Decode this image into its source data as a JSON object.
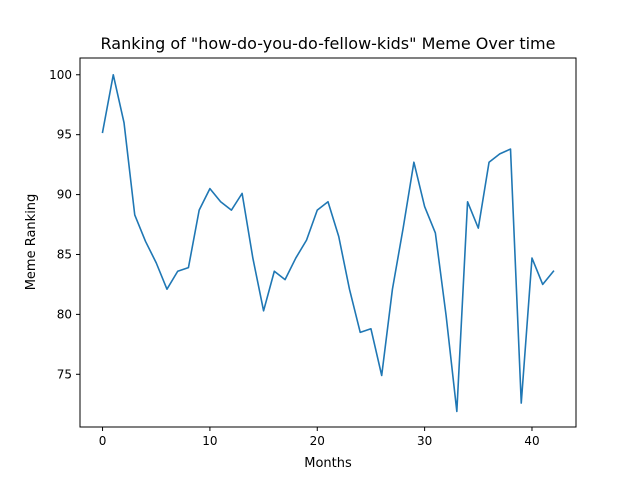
{
  "chart_data": {
    "type": "line",
    "title": "Ranking of \"how-do-you-do-fellow-kids\" Meme Over time",
    "xlabel": "Months",
    "ylabel": "Meme Ranking",
    "xlim": [
      -2.1,
      44.1
    ],
    "ylim": [
      70.6,
      101.4
    ],
    "xticks": [
      0,
      10,
      20,
      30,
      40
    ],
    "yticks": [
      75,
      80,
      85,
      90,
      95,
      100
    ],
    "grid": false,
    "line_color": "#1f77b4",
    "series": [
      {
        "x": [
          0,
          1,
          2,
          3,
          4,
          5,
          6,
          7,
          8,
          9,
          10,
          11,
          12,
          13,
          14,
          15,
          16,
          17,
          18,
          19,
          20,
          21,
          22,
          23,
          24,
          25,
          26,
          27,
          28,
          29,
          30,
          31,
          32,
          33,
          34,
          35,
          36,
          37,
          38,
          39,
          40,
          41,
          42
        ],
        "values": [
          95.2,
          100.0,
          96.0,
          88.3,
          86.1,
          84.3,
          82.1,
          83.6,
          83.9,
          88.7,
          90.5,
          89.4,
          88.7,
          90.1,
          84.7,
          80.3,
          83.6,
          82.9,
          84.7,
          86.2,
          88.7,
          89.4,
          86.5,
          82.1,
          78.5,
          78.8,
          74.9,
          82.1,
          87.2,
          92.7,
          89.0,
          86.8,
          79.9,
          71.9,
          89.4,
          87.2,
          92.7,
          93.4,
          93.8,
          72.6,
          84.7,
          82.5,
          83.6
        ]
      }
    ]
  }
}
